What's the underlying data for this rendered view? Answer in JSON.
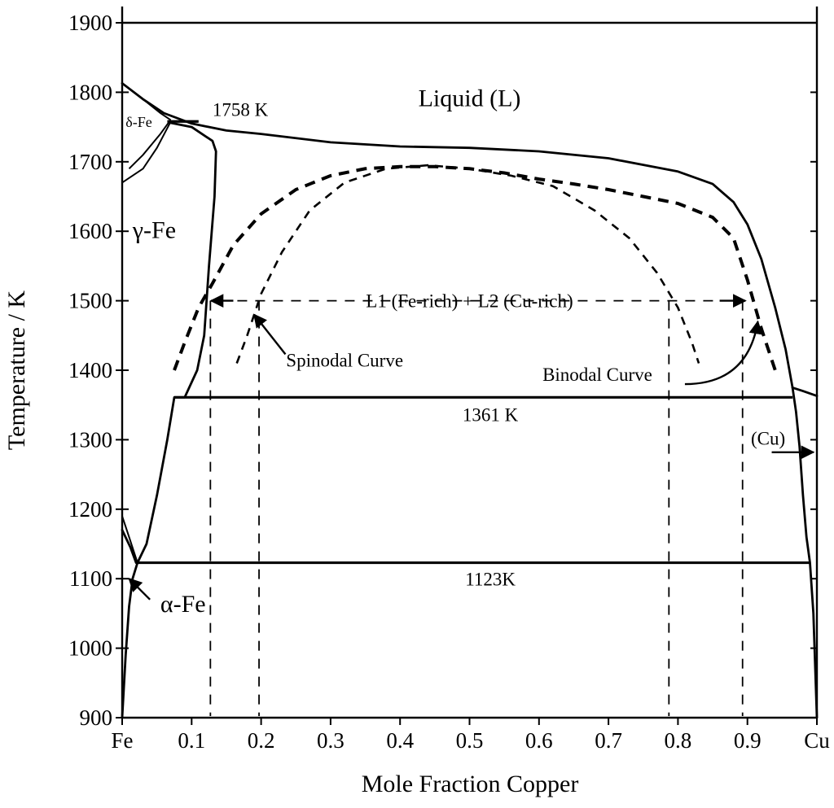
{
  "chart_data": {
    "type": "line",
    "title": "",
    "xlabel": "Mole Fraction Copper",
    "ylabel": "Temperature / K",
    "xlim": [
      0,
      1
    ],
    "ylim": [
      900,
      1900
    ],
    "x_ticks": [
      {
        "value": 0,
        "label": "Fe"
      },
      {
        "value": 0.1,
        "label": "0.1"
      },
      {
        "value": 0.2,
        "label": "0.2"
      },
      {
        "value": 0.3,
        "label": "0.3"
      },
      {
        "value": 0.4,
        "label": "0.4"
      },
      {
        "value": 0.5,
        "label": "0.5"
      },
      {
        "value": 0.6,
        "label": "0.6"
      },
      {
        "value": 0.7,
        "label": "0.7"
      },
      {
        "value": 0.8,
        "label": "0.8"
      },
      {
        "value": 0.9,
        "label": "0.9"
      },
      {
        "value": 1,
        "label": "Cu"
      }
    ],
    "y_ticks": [
      {
        "value": 900,
        "label": "900"
      },
      {
        "value": 1000,
        "label": "1000"
      },
      {
        "value": 1100,
        "label": "1100"
      },
      {
        "value": 1200,
        "label": "1200"
      },
      {
        "value": 1300,
        "label": "1300"
      },
      {
        "value": 1400,
        "label": "1400"
      },
      {
        "value": 1500,
        "label": "1500"
      },
      {
        "value": 1600,
        "label": "1600"
      },
      {
        "value": 1700,
        "label": "1700"
      },
      {
        "value": 1800,
        "label": "1800"
      },
      {
        "value": 1900,
        "label": "1900"
      }
    ],
    "grid": false,
    "curves": [
      {
        "style": "solid",
        "points": [
          [
            0,
            1813
          ],
          [
            0.03,
            1790
          ],
          [
            0.06,
            1770
          ],
          [
            0.1,
            1755
          ],
          [
            0.15,
            1745
          ],
          [
            0.2,
            1740
          ],
          [
            0.3,
            1728
          ],
          [
            0.4,
            1722
          ],
          [
            0.5,
            1720
          ],
          [
            0.6,
            1715
          ],
          [
            0.7,
            1705
          ],
          [
            0.8,
            1686
          ],
          [
            0.85,
            1668
          ],
          [
            0.88,
            1642
          ],
          [
            0.9,
            1610
          ],
          [
            0.92,
            1560
          ],
          [
            0.94,
            1490
          ],
          [
            0.955,
            1430
          ],
          [
            0.965,
            1375
          ]
        ]
      },
      {
        "style": "solid",
        "points": [
          [
            0.07,
            1756
          ],
          [
            0.1,
            1750
          ],
          [
            0.13,
            1730
          ],
          [
            0.135,
            1715
          ],
          [
            0.133,
            1650
          ],
          [
            0.125,
            1550
          ],
          [
            0.118,
            1450
          ],
          [
            0.108,
            1400
          ],
          [
            0.09,
            1361
          ],
          [
            0.075,
            1361
          ],
          [
            0.065,
            1300
          ],
          [
            0.05,
            1220
          ],
          [
            0.035,
            1150
          ],
          [
            0.022,
            1123
          ]
        ]
      },
      {
        "style": "solid",
        "points": [
          [
            0,
            1813
          ],
          [
            0.03,
            1790
          ],
          [
            0.055,
            1770
          ],
          [
            0.07,
            1760
          ]
        ]
      },
      {
        "style": "solid",
        "points": [
          [
            0,
            1670
          ],
          [
            0.03,
            1690
          ],
          [
            0.05,
            1720
          ],
          [
            0.07,
            1758
          ]
        ]
      },
      {
        "style": "solid",
        "points": [
          [
            0.01,
            1690
          ],
          [
            0.03,
            1710
          ],
          [
            0.055,
            1740
          ],
          [
            0.068,
            1758
          ]
        ]
      },
      {
        "style": "solid",
        "points": [
          [
            0,
            1190
          ],
          [
            0.01,
            1160
          ],
          [
            0.022,
            1123
          ]
        ]
      },
      {
        "style": "solid",
        "points": [
          [
            0,
            1170
          ],
          [
            0.012,
            1145
          ],
          [
            0.02,
            1123
          ]
        ]
      },
      {
        "style": "solid",
        "points": [
          [
            0,
            900
          ],
          [
            0.005,
            990
          ],
          [
            0.01,
            1060
          ],
          [
            0.015,
            1100
          ],
          [
            0.022,
            1123
          ]
        ]
      },
      {
        "style": "solid",
        "points": [
          [
            0.965,
            1375
          ],
          [
            0.97,
            1340
          ],
          [
            0.975,
            1290
          ],
          [
            0.98,
            1220
          ],
          [
            0.985,
            1160
          ],
          [
            0.99,
            1123
          ],
          [
            0.995,
            1050
          ],
          [
            1,
            900
          ]
        ]
      },
      {
        "style": "solid",
        "points": [
          [
            0.965,
            1375
          ],
          [
            0.98,
            1370
          ],
          [
            1,
            1363
          ]
        ]
      }
    ],
    "isotherms": [
      {
        "value": 1758,
        "x": [
          0.065,
          0.11
        ],
        "label": "1758 K"
      },
      {
        "value": 1361,
        "x": [
          0.075,
          0.965
        ],
        "label": "1361 K"
      },
      {
        "value": 1123,
        "x": [
          0.022,
          0.99
        ],
        "label": "1123K"
      }
    ],
    "binodal": {
      "style": "dashed",
      "points": [
        [
          0.075,
          1400
        ],
        [
          0.09,
          1440
        ],
        [
          0.11,
          1490
        ],
        [
          0.13,
          1525
        ],
        [
          0.16,
          1580
        ],
        [
          0.2,
          1625
        ],
        [
          0.25,
          1660
        ],
        [
          0.3,
          1680
        ],
        [
          0.35,
          1690
        ],
        [
          0.4,
          1693
        ],
        [
          0.45,
          1693
        ],
        [
          0.5,
          1690
        ],
        [
          0.55,
          1684
        ],
        [
          0.6,
          1675
        ],
        [
          0.65,
          1668
        ],
        [
          0.7,
          1660
        ],
        [
          0.75,
          1650
        ],
        [
          0.8,
          1640
        ],
        [
          0.85,
          1620
        ],
        [
          0.88,
          1590
        ],
        [
          0.9,
          1530
        ],
        [
          0.92,
          1460
        ],
        [
          0.94,
          1400
        ]
      ]
    },
    "spinodal": {
      "style": "dashed",
      "points": [
        [
          0.165,
          1410
        ],
        [
          0.18,
          1450
        ],
        [
          0.2,
          1510
        ],
        [
          0.23,
          1570
        ],
        [
          0.27,
          1630
        ],
        [
          0.32,
          1670
        ],
        [
          0.38,
          1690
        ],
        [
          0.44,
          1695
        ],
        [
          0.5,
          1690
        ],
        [
          0.56,
          1680
        ],
        [
          0.62,
          1665
        ],
        [
          0.68,
          1630
        ],
        [
          0.73,
          1590
        ],
        [
          0.77,
          1540
        ],
        [
          0.8,
          1490
        ],
        [
          0.82,
          1440
        ],
        [
          0.83,
          1410
        ]
      ]
    },
    "tie_lines_dashed": [
      0.127,
      0.197,
      0.787,
      0.893
    ],
    "labels": {
      "liquid": "Liquid (L)",
      "delta_fe": "δ-Fe",
      "gamma_fe": "γ-Fe",
      "alpha_fe": "α-Fe",
      "two_liquid": "L1 (Fe-rich) + L2 (Cu-rich)",
      "spinodal": "Spinodal Curve",
      "binodal": "Binodal Curve",
      "cu_solid": "(Cu)"
    }
  }
}
